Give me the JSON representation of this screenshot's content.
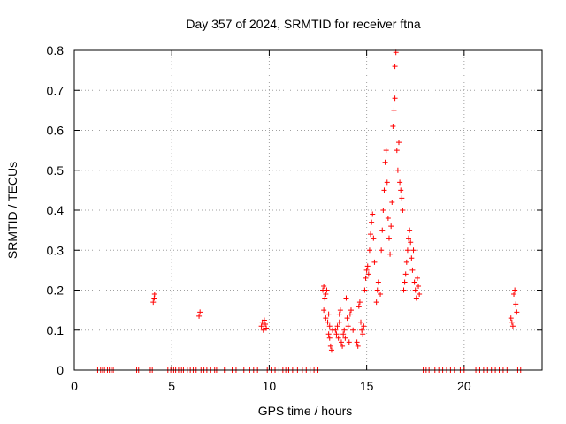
{
  "chart_data": {
    "type": "scatter",
    "title": "Day 357 of 2024, SRMTID for receiver ftna",
    "xlabel": "GPS time / hours",
    "ylabel": "SRMTID / TECUs",
    "xlim": [
      0,
      24
    ],
    "ylim": [
      0,
      0.8
    ],
    "xticks": [
      0,
      5,
      10,
      15,
      20
    ],
    "yticks": [
      0,
      0.1,
      0.2,
      0.3,
      0.4,
      0.5,
      0.6,
      0.7,
      0.8
    ],
    "xtick_labels": [
      "0",
      "5",
      "10",
      "15",
      "20"
    ],
    "ytick_labels": [
      "0",
      "0.1",
      "0.2",
      "0.3",
      "0.4",
      "0.5",
      "0.6",
      "0.7",
      "0.8"
    ],
    "grid": true,
    "marker": "+",
    "color": "#ff0000",
    "series": [
      {
        "name": "SRMTID",
        "points": [
          [
            1.2,
            0
          ],
          [
            1.35,
            0
          ],
          [
            1.45,
            0
          ],
          [
            1.55,
            0
          ],
          [
            1.7,
            0
          ],
          [
            1.8,
            0
          ],
          [
            1.9,
            0
          ],
          [
            2.0,
            0
          ],
          [
            3.2,
            0
          ],
          [
            3.3,
            0
          ],
          [
            3.9,
            0
          ],
          [
            4.0,
            0
          ],
          [
            4.05,
            0.17
          ],
          [
            4.1,
            0.18
          ],
          [
            4.12,
            0.19
          ],
          [
            4.8,
            0
          ],
          [
            4.95,
            0
          ],
          [
            5.1,
            0
          ],
          [
            5.2,
            0
          ],
          [
            5.35,
            0
          ],
          [
            5.5,
            0
          ],
          [
            5.6,
            0
          ],
          [
            5.8,
            0
          ],
          [
            5.95,
            0
          ],
          [
            6.1,
            0
          ],
          [
            6.25,
            0
          ],
          [
            6.4,
            0.135
          ],
          [
            6.45,
            0.145
          ],
          [
            6.5,
            0
          ],
          [
            6.65,
            0
          ],
          [
            6.8,
            0
          ],
          [
            7.0,
            0
          ],
          [
            7.2,
            0
          ],
          [
            7.3,
            0
          ],
          [
            7.7,
            0
          ],
          [
            8.1,
            0
          ],
          [
            8.3,
            0
          ],
          [
            8.7,
            0
          ],
          [
            9.0,
            0
          ],
          [
            9.2,
            0
          ],
          [
            9.4,
            0
          ],
          [
            9.6,
            0.11
          ],
          [
            9.65,
            0.12
          ],
          [
            9.7,
            0.1
          ],
          [
            9.75,
            0.125
          ],
          [
            9.8,
            0.115
          ],
          [
            9.85,
            0.105
          ],
          [
            9.9,
            0
          ],
          [
            10.1,
            0
          ],
          [
            10.3,
            0
          ],
          [
            10.5,
            0
          ],
          [
            10.7,
            0
          ],
          [
            10.85,
            0
          ],
          [
            11.0,
            0
          ],
          [
            11.2,
            0
          ],
          [
            11.45,
            0
          ],
          [
            11.7,
            0
          ],
          [
            11.9,
            0
          ],
          [
            12.1,
            0
          ],
          [
            12.3,
            0
          ],
          [
            12.5,
            0
          ],
          [
            12.75,
            0.2
          ],
          [
            12.8,
            0.21
          ],
          [
            12.85,
            0.18
          ],
          [
            12.9,
            0.19
          ],
          [
            12.95,
            0.2
          ],
          [
            12.8,
            0.15
          ],
          [
            12.9,
            0.13
          ],
          [
            13.0,
            0.12
          ],
          [
            13.05,
            0.09
          ],
          [
            13.1,
            0.08
          ],
          [
            13.15,
            0.06
          ],
          [
            13.2,
            0.05
          ],
          [
            13.25,
            0.1
          ],
          [
            13.1,
            0.11
          ],
          [
            13.05,
            0.14
          ],
          [
            13.4,
            0.1
          ],
          [
            13.45,
            0.09
          ],
          [
            13.5,
            0.11
          ],
          [
            13.55,
            0.08
          ],
          [
            13.6,
            0.12
          ],
          [
            13.6,
            0.14
          ],
          [
            13.65,
            0.15
          ],
          [
            13.7,
            0.07
          ],
          [
            13.75,
            0.06
          ],
          [
            13.8,
            0.09
          ],
          [
            13.85,
            0.1
          ],
          [
            13.9,
            0.08
          ],
          [
            13.95,
            0.18
          ],
          [
            14.0,
            0.13
          ],
          [
            14.05,
            0.11
          ],
          [
            14.1,
            0.07
          ],
          [
            14.15,
            0.14
          ],
          [
            14.2,
            0.15
          ],
          [
            14.3,
            0.1
          ],
          [
            14.5,
            0.07
          ],
          [
            14.55,
            0.06
          ],
          [
            14.6,
            0.16
          ],
          [
            14.65,
            0.17
          ],
          [
            14.7,
            0.12
          ],
          [
            14.75,
            0.1
          ],
          [
            14.8,
            0.09
          ],
          [
            14.85,
            0.11
          ],
          [
            14.9,
            0.2
          ],
          [
            14.95,
            0.23
          ],
          [
            15.0,
            0.25
          ],
          [
            15.05,
            0.26
          ],
          [
            15.1,
            0.24
          ],
          [
            15.15,
            0.3
          ],
          [
            15.2,
            0.34
          ],
          [
            15.25,
            0.37
          ],
          [
            15.3,
            0.39
          ],
          [
            15.35,
            0.33
          ],
          [
            15.4,
            0.27
          ],
          [
            15.5,
            0.17
          ],
          [
            15.55,
            0.2
          ],
          [
            15.6,
            0.22
          ],
          [
            15.7,
            0.19
          ],
          [
            15.75,
            0.3
          ],
          [
            15.8,
            0.35
          ],
          [
            15.85,
            0.4
          ],
          [
            15.9,
            0.45
          ],
          [
            15.95,
            0.52
          ],
          [
            16.0,
            0.55
          ],
          [
            16.05,
            0.47
          ],
          [
            16.1,
            0.38
          ],
          [
            16.15,
            0.33
          ],
          [
            16.2,
            0.29
          ],
          [
            16.25,
            0.36
          ],
          [
            16.3,
            0.42
          ],
          [
            16.35,
            0.61
          ],
          [
            16.4,
            0.65
          ],
          [
            16.45,
            0.68
          ],
          [
            16.45,
            0.76
          ],
          [
            16.5,
            0.795
          ],
          [
            16.55,
            0.55
          ],
          [
            16.6,
            0.5
          ],
          [
            16.65,
            0.57
          ],
          [
            16.7,
            0.47
          ],
          [
            16.75,
            0.45
          ],
          [
            16.8,
            0.43
          ],
          [
            16.85,
            0.4
          ],
          [
            16.9,
            0.2
          ],
          [
            16.95,
            0.22
          ],
          [
            17.0,
            0.24
          ],
          [
            17.05,
            0.27
          ],
          [
            17.1,
            0.3
          ],
          [
            17.15,
            0.33
          ],
          [
            17.2,
            0.35
          ],
          [
            17.25,
            0.32
          ],
          [
            17.3,
            0.28
          ],
          [
            17.35,
            0.25
          ],
          [
            17.4,
            0.3
          ],
          [
            17.45,
            0.22
          ],
          [
            17.5,
            0.2
          ],
          [
            17.55,
            0.18
          ],
          [
            17.6,
            0.23
          ],
          [
            17.65,
            0.21
          ],
          [
            17.7,
            0.19
          ],
          [
            17.9,
            0
          ],
          [
            18.05,
            0
          ],
          [
            18.2,
            0
          ],
          [
            18.35,
            0
          ],
          [
            18.5,
            0
          ],
          [
            18.7,
            0
          ],
          [
            18.9,
            0
          ],
          [
            19.1,
            0
          ],
          [
            19.3,
            0
          ],
          [
            19.5,
            0
          ],
          [
            19.8,
            0
          ],
          [
            20.0,
            0
          ],
          [
            20.6,
            0
          ],
          [
            20.8,
            0
          ],
          [
            21.0,
            0
          ],
          [
            21.2,
            0
          ],
          [
            21.4,
            0
          ],
          [
            21.6,
            0
          ],
          [
            21.8,
            0
          ],
          [
            22.0,
            0
          ],
          [
            22.2,
            0
          ],
          [
            22.4,
            0.13
          ],
          [
            22.45,
            0.12
          ],
          [
            22.5,
            0.11
          ],
          [
            22.55,
            0.19
          ],
          [
            22.6,
            0.2
          ],
          [
            22.65,
            0.165
          ],
          [
            22.7,
            0.145
          ],
          [
            22.75,
            0
          ],
          [
            22.9,
            0
          ]
        ]
      }
    ]
  }
}
